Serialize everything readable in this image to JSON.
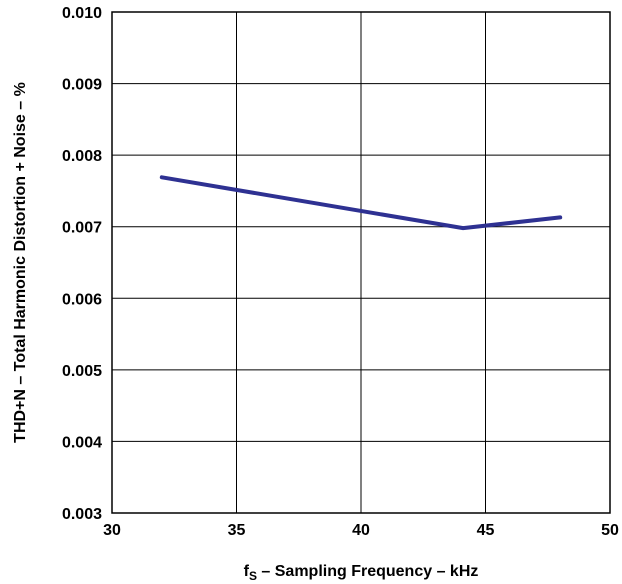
{
  "chart_data": {
    "type": "line",
    "title": "",
    "xlabel": {
      "prefix": "f",
      "subscript": "S",
      "suffix": " – Sampling Frequency – kHz"
    },
    "ylabel": "THD+N – Total Harmonic Distortion + Noise – %",
    "xlim": [
      30,
      50
    ],
    "ylim": [
      0.003,
      0.01
    ],
    "x_ticks": [
      "30",
      "35",
      "40",
      "45",
      "50"
    ],
    "y_ticks": [
      "0.003",
      "0.004",
      "0.005",
      "0.006",
      "0.007",
      "0.008",
      "0.009",
      "0.010"
    ],
    "grid": true,
    "series": [
      {
        "color": "#2e3192",
        "points": [
          {
            "x": 32,
            "y": 0.00769
          },
          {
            "x": 44.1,
            "y": 0.00698
          },
          {
            "x": 48,
            "y": 0.00713
          }
        ]
      }
    ]
  }
}
